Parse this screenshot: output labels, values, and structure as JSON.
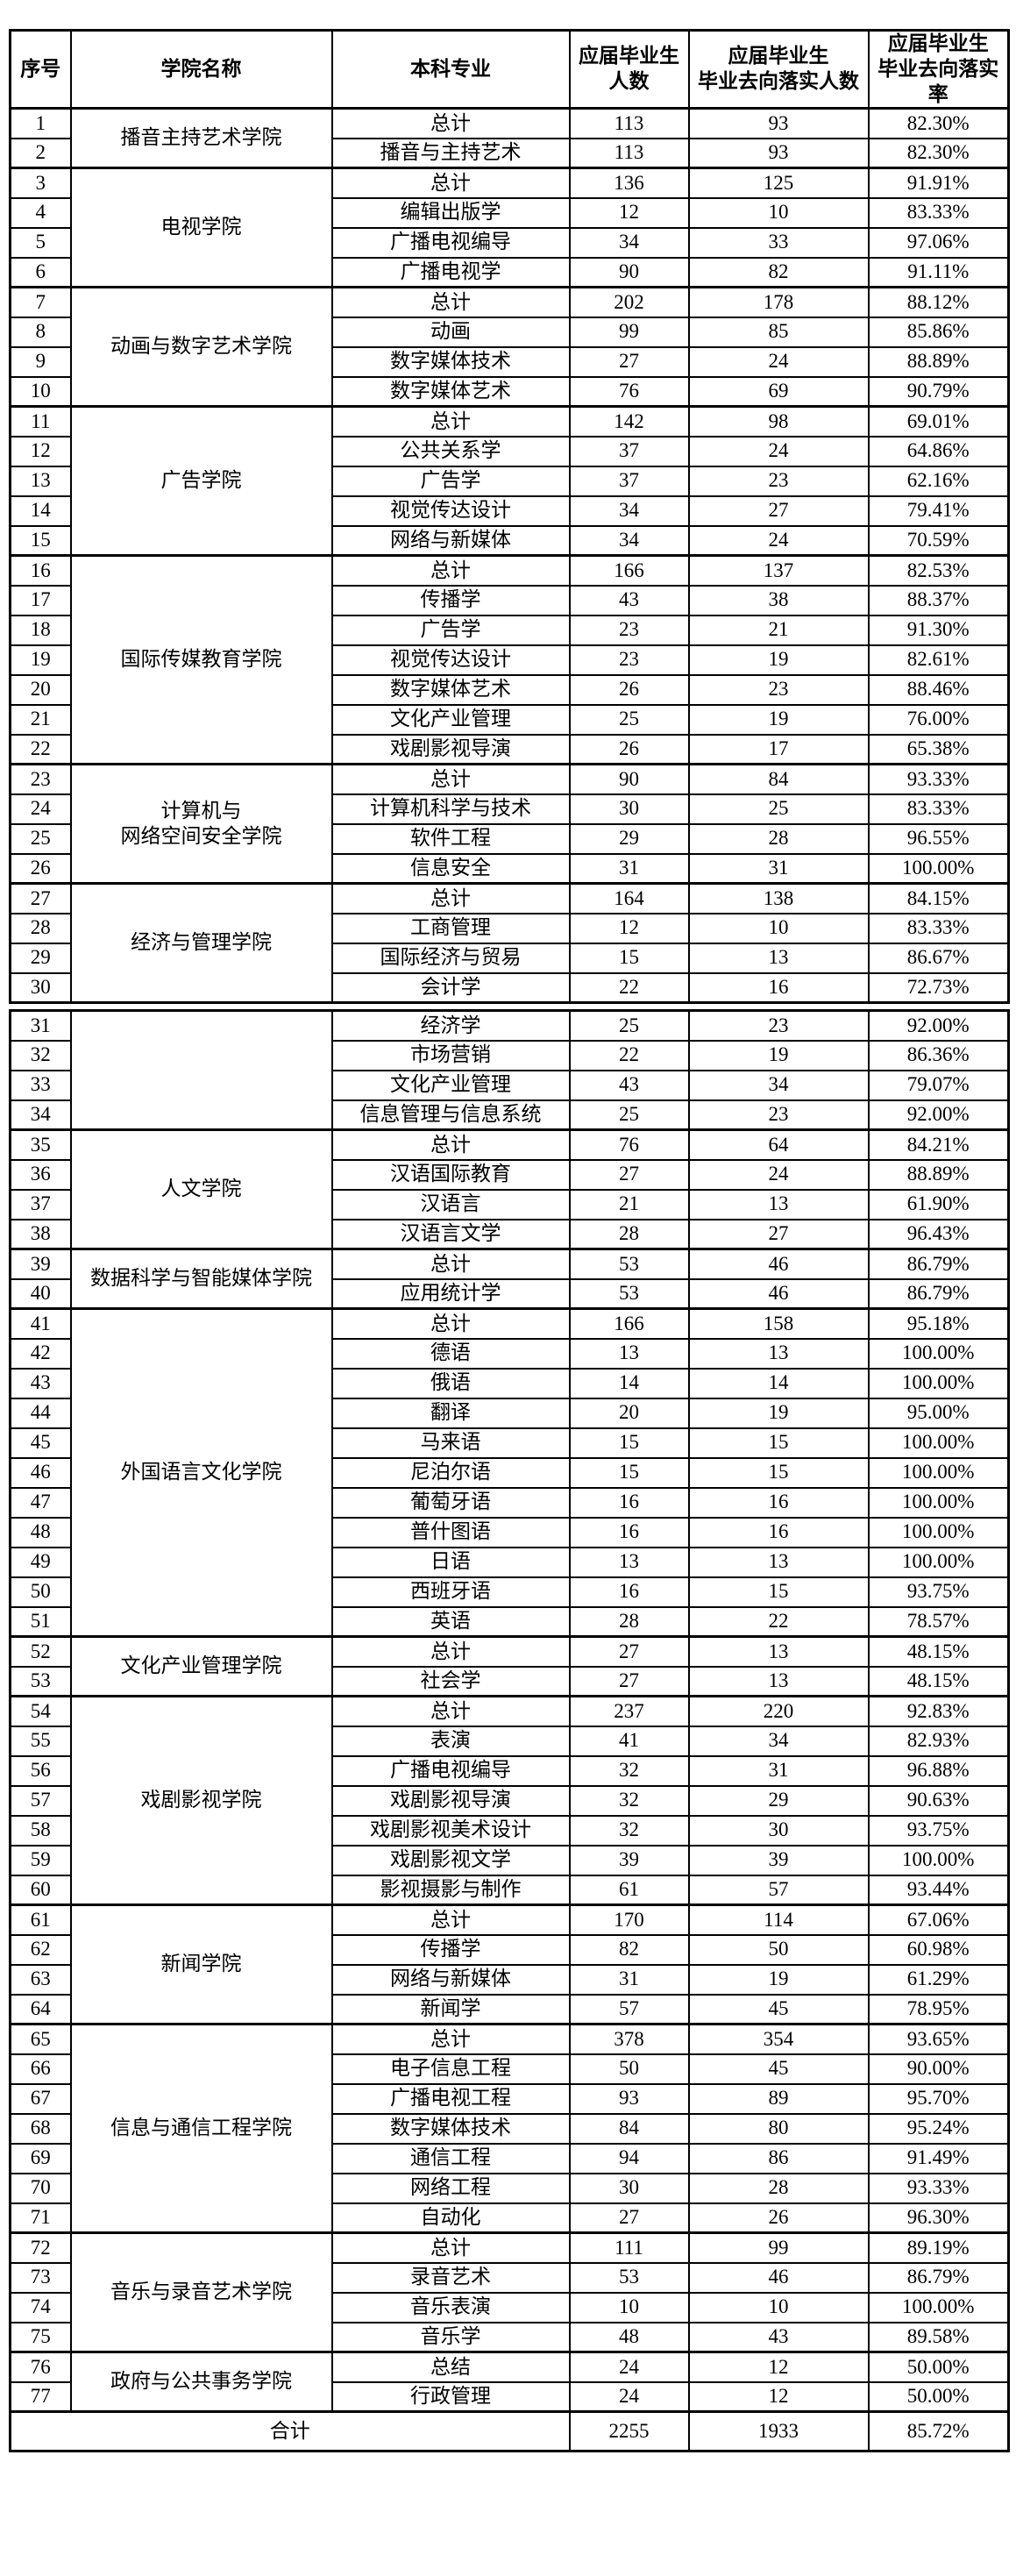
{
  "colors": {
    "background": "#ffffff",
    "text": "#000000",
    "border": "#000000"
  },
  "header": {
    "serial": "序号",
    "college": "学院名称",
    "major": "本科专业",
    "graduates": "应届毕业生\n人数",
    "placed": "应届毕业生\n毕业去向落实人数",
    "rate": "应届毕业生\n毕业去向落实率"
  },
  "sections": [
    {
      "groups": [
        {
          "college": "播音主持艺术学院",
          "rows": [
            {
              "no": "1",
              "major": "总计",
              "graduates": "113",
              "placed": "93",
              "rate": "82.30%"
            },
            {
              "no": "2",
              "major": "播音与主持艺术",
              "graduates": "113",
              "placed": "93",
              "rate": "82.30%"
            }
          ]
        },
        {
          "college": "电视学院",
          "rows": [
            {
              "no": "3",
              "major": "总计",
              "graduates": "136",
              "placed": "125",
              "rate": "91.91%"
            },
            {
              "no": "4",
              "major": "编辑出版学",
              "graduates": "12",
              "placed": "10",
              "rate": "83.33%"
            },
            {
              "no": "5",
              "major": "广播电视编导",
              "graduates": "34",
              "placed": "33",
              "rate": "97.06%"
            },
            {
              "no": "6",
              "major": "广播电视学",
              "graduates": "90",
              "placed": "82",
              "rate": "91.11%"
            }
          ]
        },
        {
          "college": "动画与数字艺术学院",
          "rows": [
            {
              "no": "7",
              "major": "总计",
              "graduates": "202",
              "placed": "178",
              "rate": "88.12%"
            },
            {
              "no": "8",
              "major": "动画",
              "graduates": "99",
              "placed": "85",
              "rate": "85.86%"
            },
            {
              "no": "9",
              "major": "数字媒体技术",
              "graduates": "27",
              "placed": "24",
              "rate": "88.89%"
            },
            {
              "no": "10",
              "major": "数字媒体艺术",
              "graduates": "76",
              "placed": "69",
              "rate": "90.79%"
            }
          ]
        },
        {
          "college": "广告学院",
          "rows": [
            {
              "no": "11",
              "major": "总计",
              "graduates": "142",
              "placed": "98",
              "rate": "69.01%"
            },
            {
              "no": "12",
              "major": "公共关系学",
              "graduates": "37",
              "placed": "24",
              "rate": "64.86%"
            },
            {
              "no": "13",
              "major": "广告学",
              "graduates": "37",
              "placed": "23",
              "rate": "62.16%"
            },
            {
              "no": "14",
              "major": "视觉传达设计",
              "graduates": "34",
              "placed": "27",
              "rate": "79.41%"
            },
            {
              "no": "15",
              "major": "网络与新媒体",
              "graduates": "34",
              "placed": "24",
              "rate": "70.59%"
            }
          ]
        },
        {
          "college": "国际传媒教育学院",
          "rows": [
            {
              "no": "16",
              "major": "总计",
              "graduates": "166",
              "placed": "137",
              "rate": "82.53%"
            },
            {
              "no": "17",
              "major": "传播学",
              "graduates": "43",
              "placed": "38",
              "rate": "88.37%"
            },
            {
              "no": "18",
              "major": "广告学",
              "graduates": "23",
              "placed": "21",
              "rate": "91.30%"
            },
            {
              "no": "19",
              "major": "视觉传达设计",
              "graduates": "23",
              "placed": "19",
              "rate": "82.61%"
            },
            {
              "no": "20",
              "major": "数字媒体艺术",
              "graduates": "26",
              "placed": "23",
              "rate": "88.46%"
            },
            {
              "no": "21",
              "major": "文化产业管理",
              "graduates": "25",
              "placed": "19",
              "rate": "76.00%"
            },
            {
              "no": "22",
              "major": "戏剧影视导演",
              "graduates": "26",
              "placed": "17",
              "rate": "65.38%"
            }
          ]
        },
        {
          "college": "计算机与\n网络空间安全学院",
          "rows": [
            {
              "no": "23",
              "major": "总计",
              "graduates": "90",
              "placed": "84",
              "rate": "93.33%"
            },
            {
              "no": "24",
              "major": "计算机科学与技术",
              "graduates": "30",
              "placed": "25",
              "rate": "83.33%"
            },
            {
              "no": "25",
              "major": "软件工程",
              "graduates": "29",
              "placed": "28",
              "rate": "96.55%"
            },
            {
              "no": "26",
              "major": "信息安全",
              "graduates": "31",
              "placed": "31",
              "rate": "100.00%"
            }
          ]
        },
        {
          "college": "经济与管理学院",
          "rows": [
            {
              "no": "27",
              "major": "总计",
              "graduates": "164",
              "placed": "138",
              "rate": "84.15%"
            },
            {
              "no": "28",
              "major": "工商管理",
              "graduates": "12",
              "placed": "10",
              "rate": "83.33%"
            },
            {
              "no": "29",
              "major": "国际经济与贸易",
              "graduates": "15",
              "placed": "13",
              "rate": "86.67%"
            },
            {
              "no": "30",
              "major": "会计学",
              "graduates": "22",
              "placed": "16",
              "rate": "72.73%"
            }
          ]
        }
      ]
    },
    {
      "groups": [
        {
          "college": "",
          "rows": [
            {
              "no": "31",
              "major": "经济学",
              "graduates": "25",
              "placed": "23",
              "rate": "92.00%"
            },
            {
              "no": "32",
              "major": "市场营销",
              "graduates": "22",
              "placed": "19",
              "rate": "86.36%"
            },
            {
              "no": "33",
              "major": "文化产业管理",
              "graduates": "43",
              "placed": "34",
              "rate": "79.07%"
            },
            {
              "no": "34",
              "major": "信息管理与信息系统",
              "graduates": "25",
              "placed": "23",
              "rate": "92.00%"
            }
          ]
        },
        {
          "college": "人文学院",
          "rows": [
            {
              "no": "35",
              "major": "总计",
              "graduates": "76",
              "placed": "64",
              "rate": "84.21%"
            },
            {
              "no": "36",
              "major": "汉语国际教育",
              "graduates": "27",
              "placed": "24",
              "rate": "88.89%"
            },
            {
              "no": "37",
              "major": "汉语言",
              "graduates": "21",
              "placed": "13",
              "rate": "61.90%"
            },
            {
              "no": "38",
              "major": "汉语言文学",
              "graduates": "28",
              "placed": "27",
              "rate": "96.43%"
            }
          ]
        },
        {
          "college": "数据科学与智能媒体学院",
          "rows": [
            {
              "no": "39",
              "major": "总计",
              "graduates": "53",
              "placed": "46",
              "rate": "86.79%"
            },
            {
              "no": "40",
              "major": "应用统计学",
              "graduates": "53",
              "placed": "46",
              "rate": "86.79%"
            }
          ]
        },
        {
          "college": "外国语言文化学院",
          "rows": [
            {
              "no": "41",
              "major": "总计",
              "graduates": "166",
              "placed": "158",
              "rate": "95.18%"
            },
            {
              "no": "42",
              "major": "德语",
              "graduates": "13",
              "placed": "13",
              "rate": "100.00%"
            },
            {
              "no": "43",
              "major": "俄语",
              "graduates": "14",
              "placed": "14",
              "rate": "100.00%"
            },
            {
              "no": "44",
              "major": "翻译",
              "graduates": "20",
              "placed": "19",
              "rate": "95.00%"
            },
            {
              "no": "45",
              "major": "马来语",
              "graduates": "15",
              "placed": "15",
              "rate": "100.00%"
            },
            {
              "no": "46",
              "major": "尼泊尔语",
              "graduates": "15",
              "placed": "15",
              "rate": "100.00%"
            },
            {
              "no": "47",
              "major": "葡萄牙语",
              "graduates": "16",
              "placed": "16",
              "rate": "100.00%"
            },
            {
              "no": "48",
              "major": "普什图语",
              "graduates": "16",
              "placed": "16",
              "rate": "100.00%"
            },
            {
              "no": "49",
              "major": "日语",
              "graduates": "13",
              "placed": "13",
              "rate": "100.00%"
            },
            {
              "no": "50",
              "major": "西班牙语",
              "graduates": "16",
              "placed": "15",
              "rate": "93.75%"
            },
            {
              "no": "51",
              "major": "英语",
              "graduates": "28",
              "placed": "22",
              "rate": "78.57%"
            }
          ]
        },
        {
          "college": "文化产业管理学院",
          "rows": [
            {
              "no": "52",
              "major": "总计",
              "graduates": "27",
              "placed": "13",
              "rate": "48.15%"
            },
            {
              "no": "53",
              "major": "社会学",
              "graduates": "27",
              "placed": "13",
              "rate": "48.15%"
            }
          ]
        },
        {
          "college": "戏剧影视学院",
          "rows": [
            {
              "no": "54",
              "major": "总计",
              "graduates": "237",
              "placed": "220",
              "rate": "92.83%"
            },
            {
              "no": "55",
              "major": "表演",
              "graduates": "41",
              "placed": "34",
              "rate": "82.93%"
            },
            {
              "no": "56",
              "major": "广播电视编导",
              "graduates": "32",
              "placed": "31",
              "rate": "96.88%"
            },
            {
              "no": "57",
              "major": "戏剧影视导演",
              "graduates": "32",
              "placed": "29",
              "rate": "90.63%"
            },
            {
              "no": "58",
              "major": "戏剧影视美术设计",
              "graduates": "32",
              "placed": "30",
              "rate": "93.75%"
            },
            {
              "no": "59",
              "major": "戏剧影视文学",
              "graduates": "39",
              "placed": "39",
              "rate": "100.00%"
            },
            {
              "no": "60",
              "major": "影视摄影与制作",
              "graduates": "61",
              "placed": "57",
              "rate": "93.44%"
            }
          ]
        },
        {
          "college": "新闻学院",
          "rows": [
            {
              "no": "61",
              "major": "总计",
              "graduates": "170",
              "placed": "114",
              "rate": "67.06%"
            },
            {
              "no": "62",
              "major": "传播学",
              "graduates": "82",
              "placed": "50",
              "rate": "60.98%"
            },
            {
              "no": "63",
              "major": "网络与新媒体",
              "graduates": "31",
              "placed": "19",
              "rate": "61.29%"
            },
            {
              "no": "64",
              "major": "新闻学",
              "graduates": "57",
              "placed": "45",
              "rate": "78.95%"
            }
          ]
        },
        {
          "college": "信息与通信工程学院",
          "rows": [
            {
              "no": "65",
              "major": "总计",
              "graduates": "378",
              "placed": "354",
              "rate": "93.65%"
            },
            {
              "no": "66",
              "major": "电子信息工程",
              "graduates": "50",
              "placed": "45",
              "rate": "90.00%"
            },
            {
              "no": "67",
              "major": "广播电视工程",
              "graduates": "93",
              "placed": "89",
              "rate": "95.70%"
            },
            {
              "no": "68",
              "major": "数字媒体技术",
              "graduates": "84",
              "placed": "80",
              "rate": "95.24%"
            },
            {
              "no": "69",
              "major": "通信工程",
              "graduates": "94",
              "placed": "86",
              "rate": "91.49%"
            },
            {
              "no": "70",
              "major": "网络工程",
              "graduates": "30",
              "placed": "28",
              "rate": "93.33%"
            },
            {
              "no": "71",
              "major": "自动化",
              "graduates": "27",
              "placed": "26",
              "rate": "96.30%"
            }
          ]
        },
        {
          "college": "音乐与录音艺术学院",
          "rows": [
            {
              "no": "72",
              "major": "总计",
              "graduates": "111",
              "placed": "99",
              "rate": "89.19%"
            },
            {
              "no": "73",
              "major": "录音艺术",
              "graduates": "53",
              "placed": "46",
              "rate": "86.79%"
            },
            {
              "no": "74",
              "major": "音乐表演",
              "graduates": "10",
              "placed": "10",
              "rate": "100.00%"
            },
            {
              "no": "75",
              "major": "音乐学",
              "graduates": "48",
              "placed": "43",
              "rate": "89.58%"
            }
          ]
        },
        {
          "college": "政府与公共事务学院",
          "rows": [
            {
              "no": "76",
              "major": "总结",
              "graduates": "24",
              "placed": "12",
              "rate": "50.00%"
            },
            {
              "no": "77",
              "major": "行政管理",
              "graduates": "24",
              "placed": "12",
              "rate": "50.00%"
            }
          ]
        }
      ]
    }
  ],
  "footer": {
    "label": "合计",
    "graduates": "2255",
    "placed": "1933",
    "rate": "85.72%"
  }
}
